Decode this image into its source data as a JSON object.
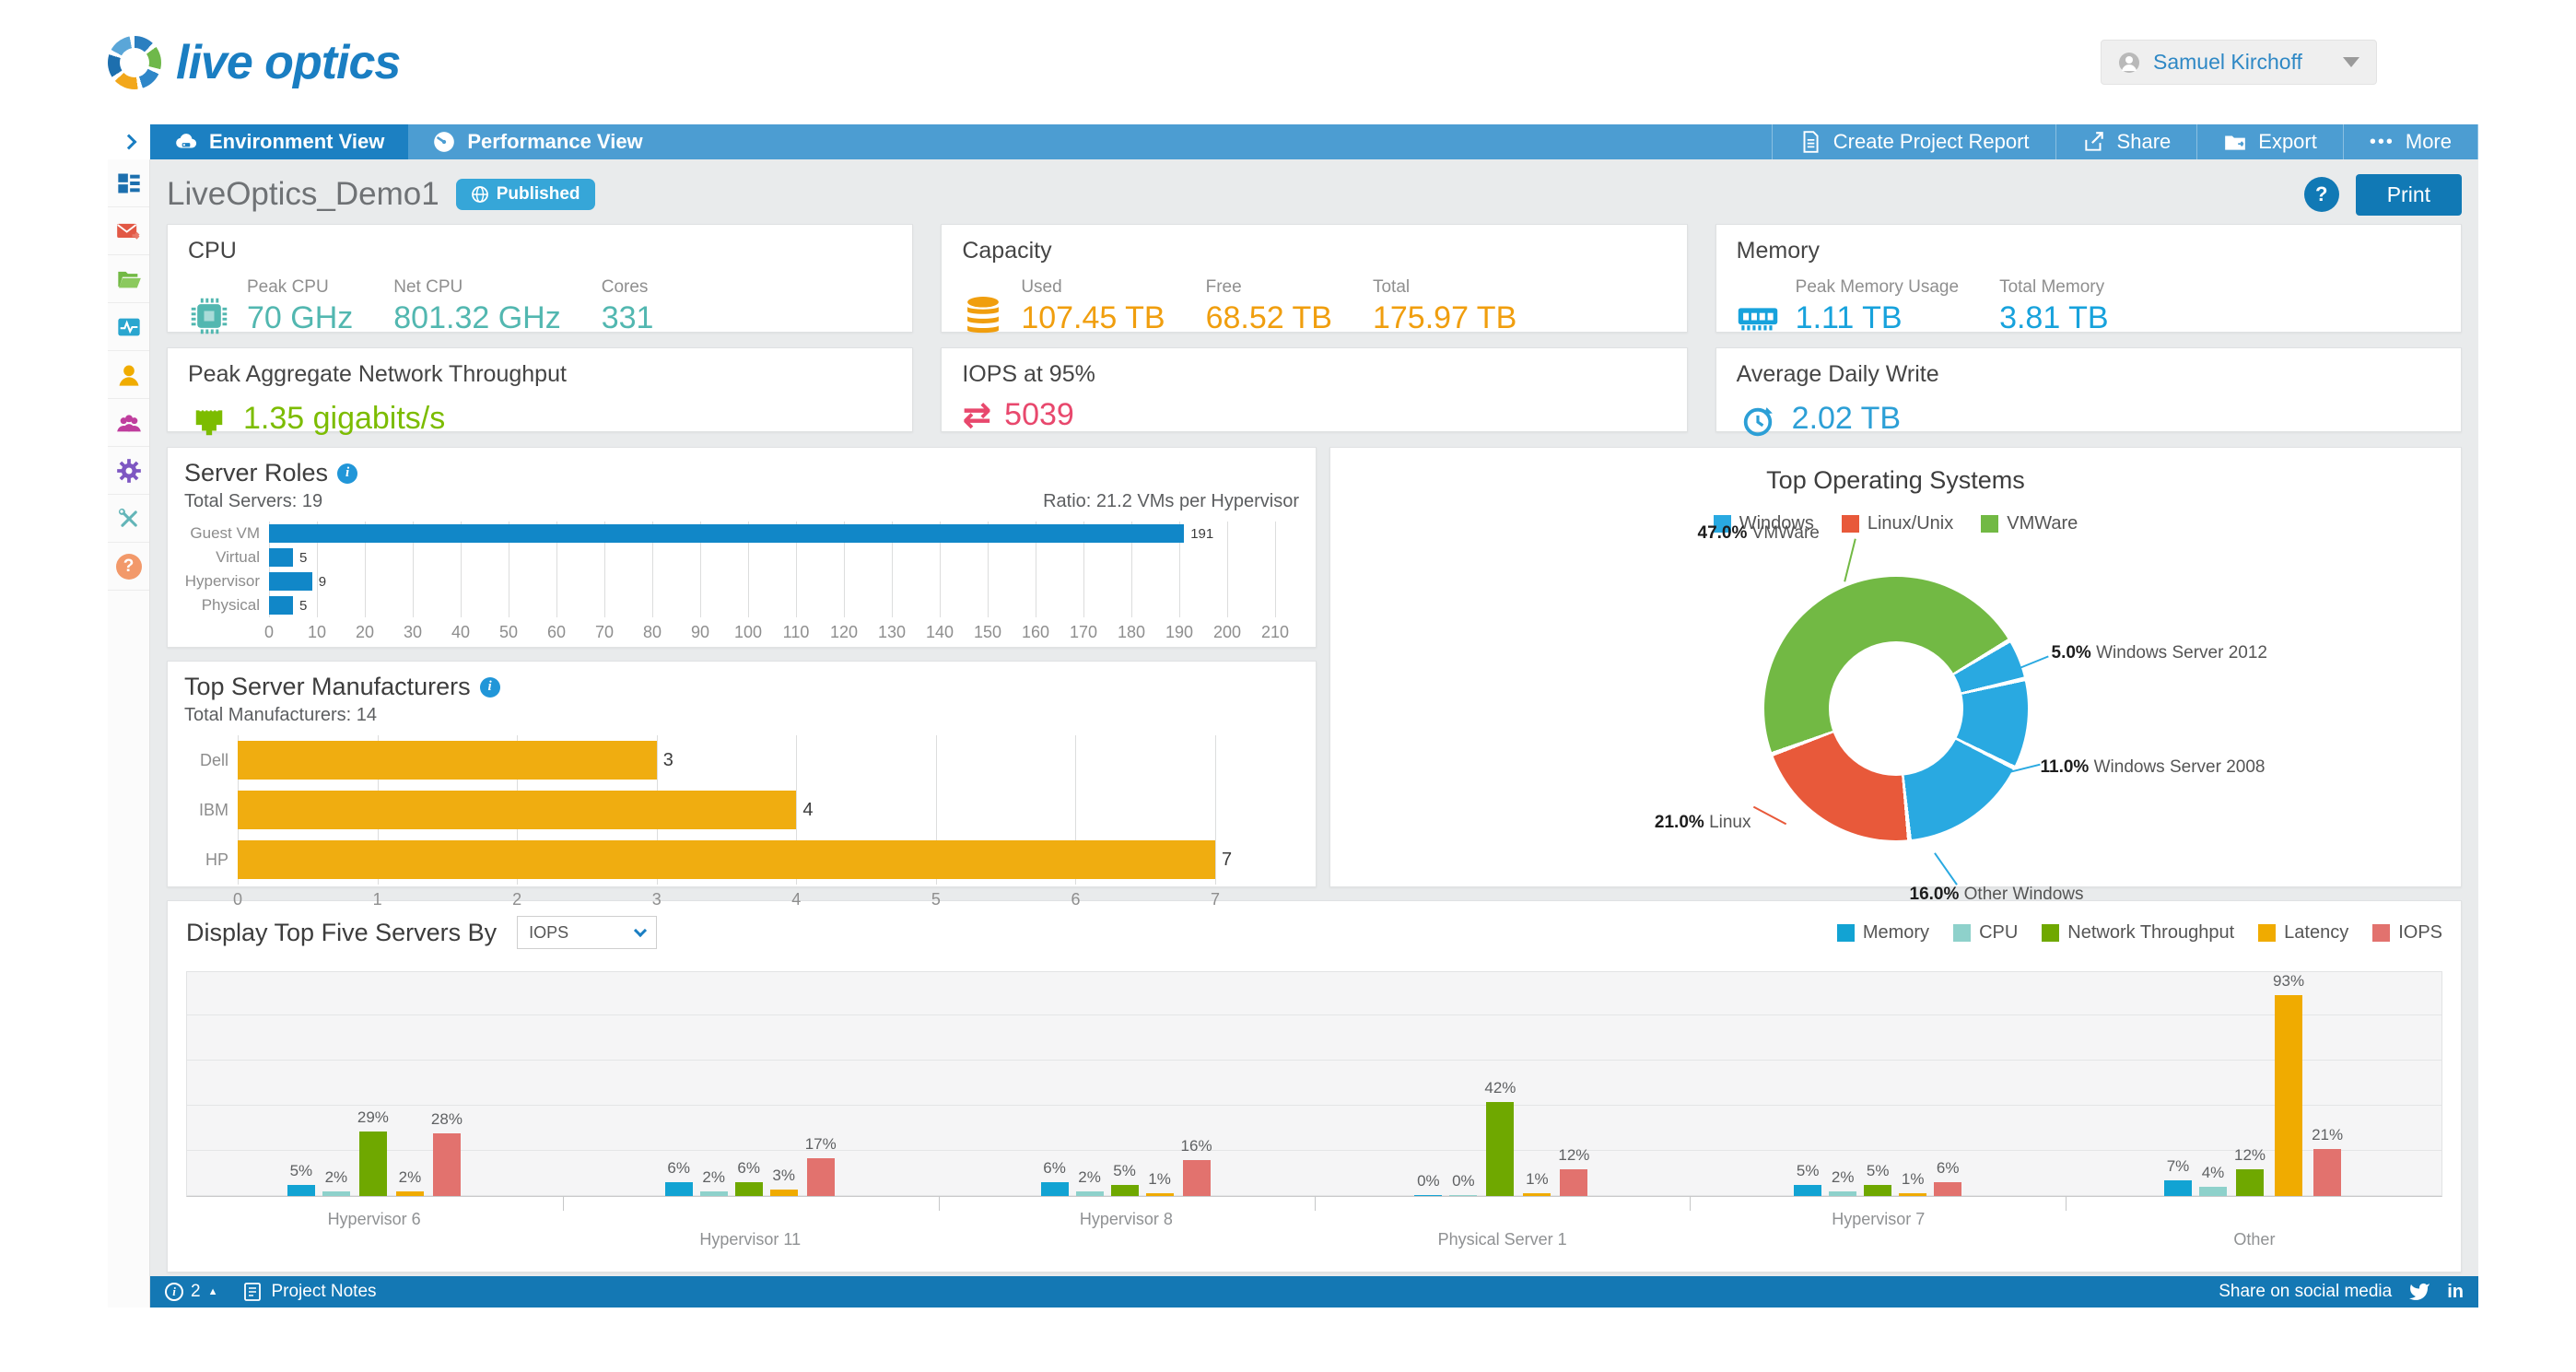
{
  "brand": {
    "name": "live optics"
  },
  "user": {
    "name": "Samuel Kirchoff"
  },
  "nav": {
    "tabs": [
      {
        "label": "Environment View",
        "active": true
      },
      {
        "label": "Performance View",
        "active": false
      }
    ],
    "actions": [
      {
        "label": "Create Project Report"
      },
      {
        "label": "Share"
      },
      {
        "label": "Export"
      },
      {
        "label": "More"
      }
    ]
  },
  "sidebar": {
    "items": [
      "dashboard",
      "mail-forward",
      "projects-folder",
      "performance-monitor",
      "account-person",
      "team-group",
      "settings-gear",
      "admin-tools",
      "help"
    ]
  },
  "page": {
    "title": "LiveOptics_Demo1",
    "badge": "Published",
    "help_label": "?",
    "print_label": "Print"
  },
  "glyphs": {
    "info": "i",
    "more_dots": "•••",
    "iops_arrows": "⇄",
    "linkedin": "in",
    "footer_up": "▲"
  },
  "cards": {
    "cpu": {
      "title": "CPU",
      "color": "#52b7b0",
      "metrics": [
        {
          "label": "Peak CPU",
          "value": "70 GHz"
        },
        {
          "label": "Net CPU",
          "value": "801.32 GHz"
        },
        {
          "label": "Cores",
          "value": "331"
        }
      ]
    },
    "capacity": {
      "title": "Capacity",
      "color": "#f09e0e",
      "metrics": [
        {
          "label": "Used",
          "value": "107.45 TB"
        },
        {
          "label": "Free",
          "value": "68.52 TB"
        },
        {
          "label": "Total",
          "value": "175.97 TB"
        }
      ]
    },
    "memory": {
      "title": "Memory",
      "color": "#17a2dc",
      "metrics": [
        {
          "label": "Peak Memory Usage",
          "value": "1.11 TB"
        },
        {
          "label": "Total Memory",
          "value": "3.81 TB"
        }
      ]
    },
    "network": {
      "title": "Peak Aggregate Network Throughput",
      "value": "1.35 gigabits/s",
      "color": "#7cbc00"
    },
    "iops": {
      "title": "IOPS at 95%",
      "value": "5039",
      "color": "#e8486d"
    },
    "daily_write": {
      "title": "Average Daily Write",
      "value": "2.02 TB",
      "color": "#2c9fd6"
    }
  },
  "chart_data": [
    {
      "id": "server_roles",
      "type": "bar",
      "orientation": "horizontal",
      "title": "Server Roles",
      "subtitle": "Total Servers: 19",
      "annotation": "Ratio: 21.2 VMs per Hypervisor",
      "categories": [
        "Guest VM",
        "Virtual",
        "Hypervisor",
        "Physical"
      ],
      "values": [
        191,
        5,
        9,
        5
      ],
      "xlim": [
        0,
        215
      ],
      "tick_step": 10,
      "tick_max": 210,
      "bar_color": "#1187c8",
      "grid": true
    },
    {
      "id": "manufacturers",
      "type": "bar",
      "orientation": "horizontal",
      "title": "Top Server Manufacturers",
      "subtitle": "Total Manufacturers: 14",
      "categories": [
        "Dell",
        "IBM",
        "HP"
      ],
      "values": [
        3,
        4,
        7
      ],
      "xlim": [
        0,
        7.6
      ],
      "tick_step": 1,
      "tick_max": 7,
      "bar_color": "#f0ad10",
      "grid": true
    },
    {
      "id": "top_os",
      "type": "pie",
      "title": "Top Operating Systems",
      "legend": [
        {
          "label": "Windows",
          "color": "#29a9e1"
        },
        {
          "label": "Linux/Unix",
          "color": "#e8593a"
        },
        {
          "label": "VMWare",
          "color": "#72b944"
        }
      ],
      "start_angle": 60,
      "donut": true,
      "legend_position": "top",
      "slices": [
        {
          "label": "Windows Server 2012",
          "pct": 5.0,
          "color": "#29a9e1"
        },
        {
          "label": "Windows Server 2008",
          "pct": 11.0,
          "color": "#29a9e1"
        },
        {
          "label": "Other Windows",
          "pct": 16.0,
          "color": "#29a9e1"
        },
        {
          "label": "Linux",
          "pct": 21.0,
          "color": "#e8593a"
        },
        {
          "label": "VMWare",
          "pct": 47.0,
          "color": "#72b944"
        }
      ]
    },
    {
      "id": "top_servers",
      "type": "bar",
      "grouped": true,
      "control_label": "Display Top Five Servers By",
      "dropdown_value": "IOPS",
      "categories": [
        "Hypervisor 6",
        "Hypervisor 11",
        "Hypervisor 8",
        "Physical Server 1",
        "Hypervisor 7",
        "Other"
      ],
      "series": [
        {
          "name": "Memory",
          "color": "#12a3d3",
          "values": [
            5,
            6,
            6,
            0,
            5,
            7
          ]
        },
        {
          "name": "CPU",
          "color": "#8ed1cb",
          "values": [
            2,
            2,
            2,
            0,
            2,
            4
          ]
        },
        {
          "name": "Network Throughput",
          "color": "#6fa800",
          "values": [
            29,
            6,
            5,
            42,
            5,
            12
          ]
        },
        {
          "name": "Latency",
          "color": "#f0ab00",
          "values": [
            2,
            3,
            1,
            1,
            1,
            93
          ]
        },
        {
          "name": "IOPS",
          "color": "#e2726e",
          "values": [
            28,
            17,
            16,
            12,
            6,
            21
          ]
        }
      ],
      "ylim": [
        0,
        100
      ],
      "value_suffix": "%",
      "grid": true,
      "legend_position": "top-right"
    }
  ],
  "footer": {
    "info_count": "2",
    "notes_label": "Project Notes",
    "share_label": "Share on social media"
  }
}
